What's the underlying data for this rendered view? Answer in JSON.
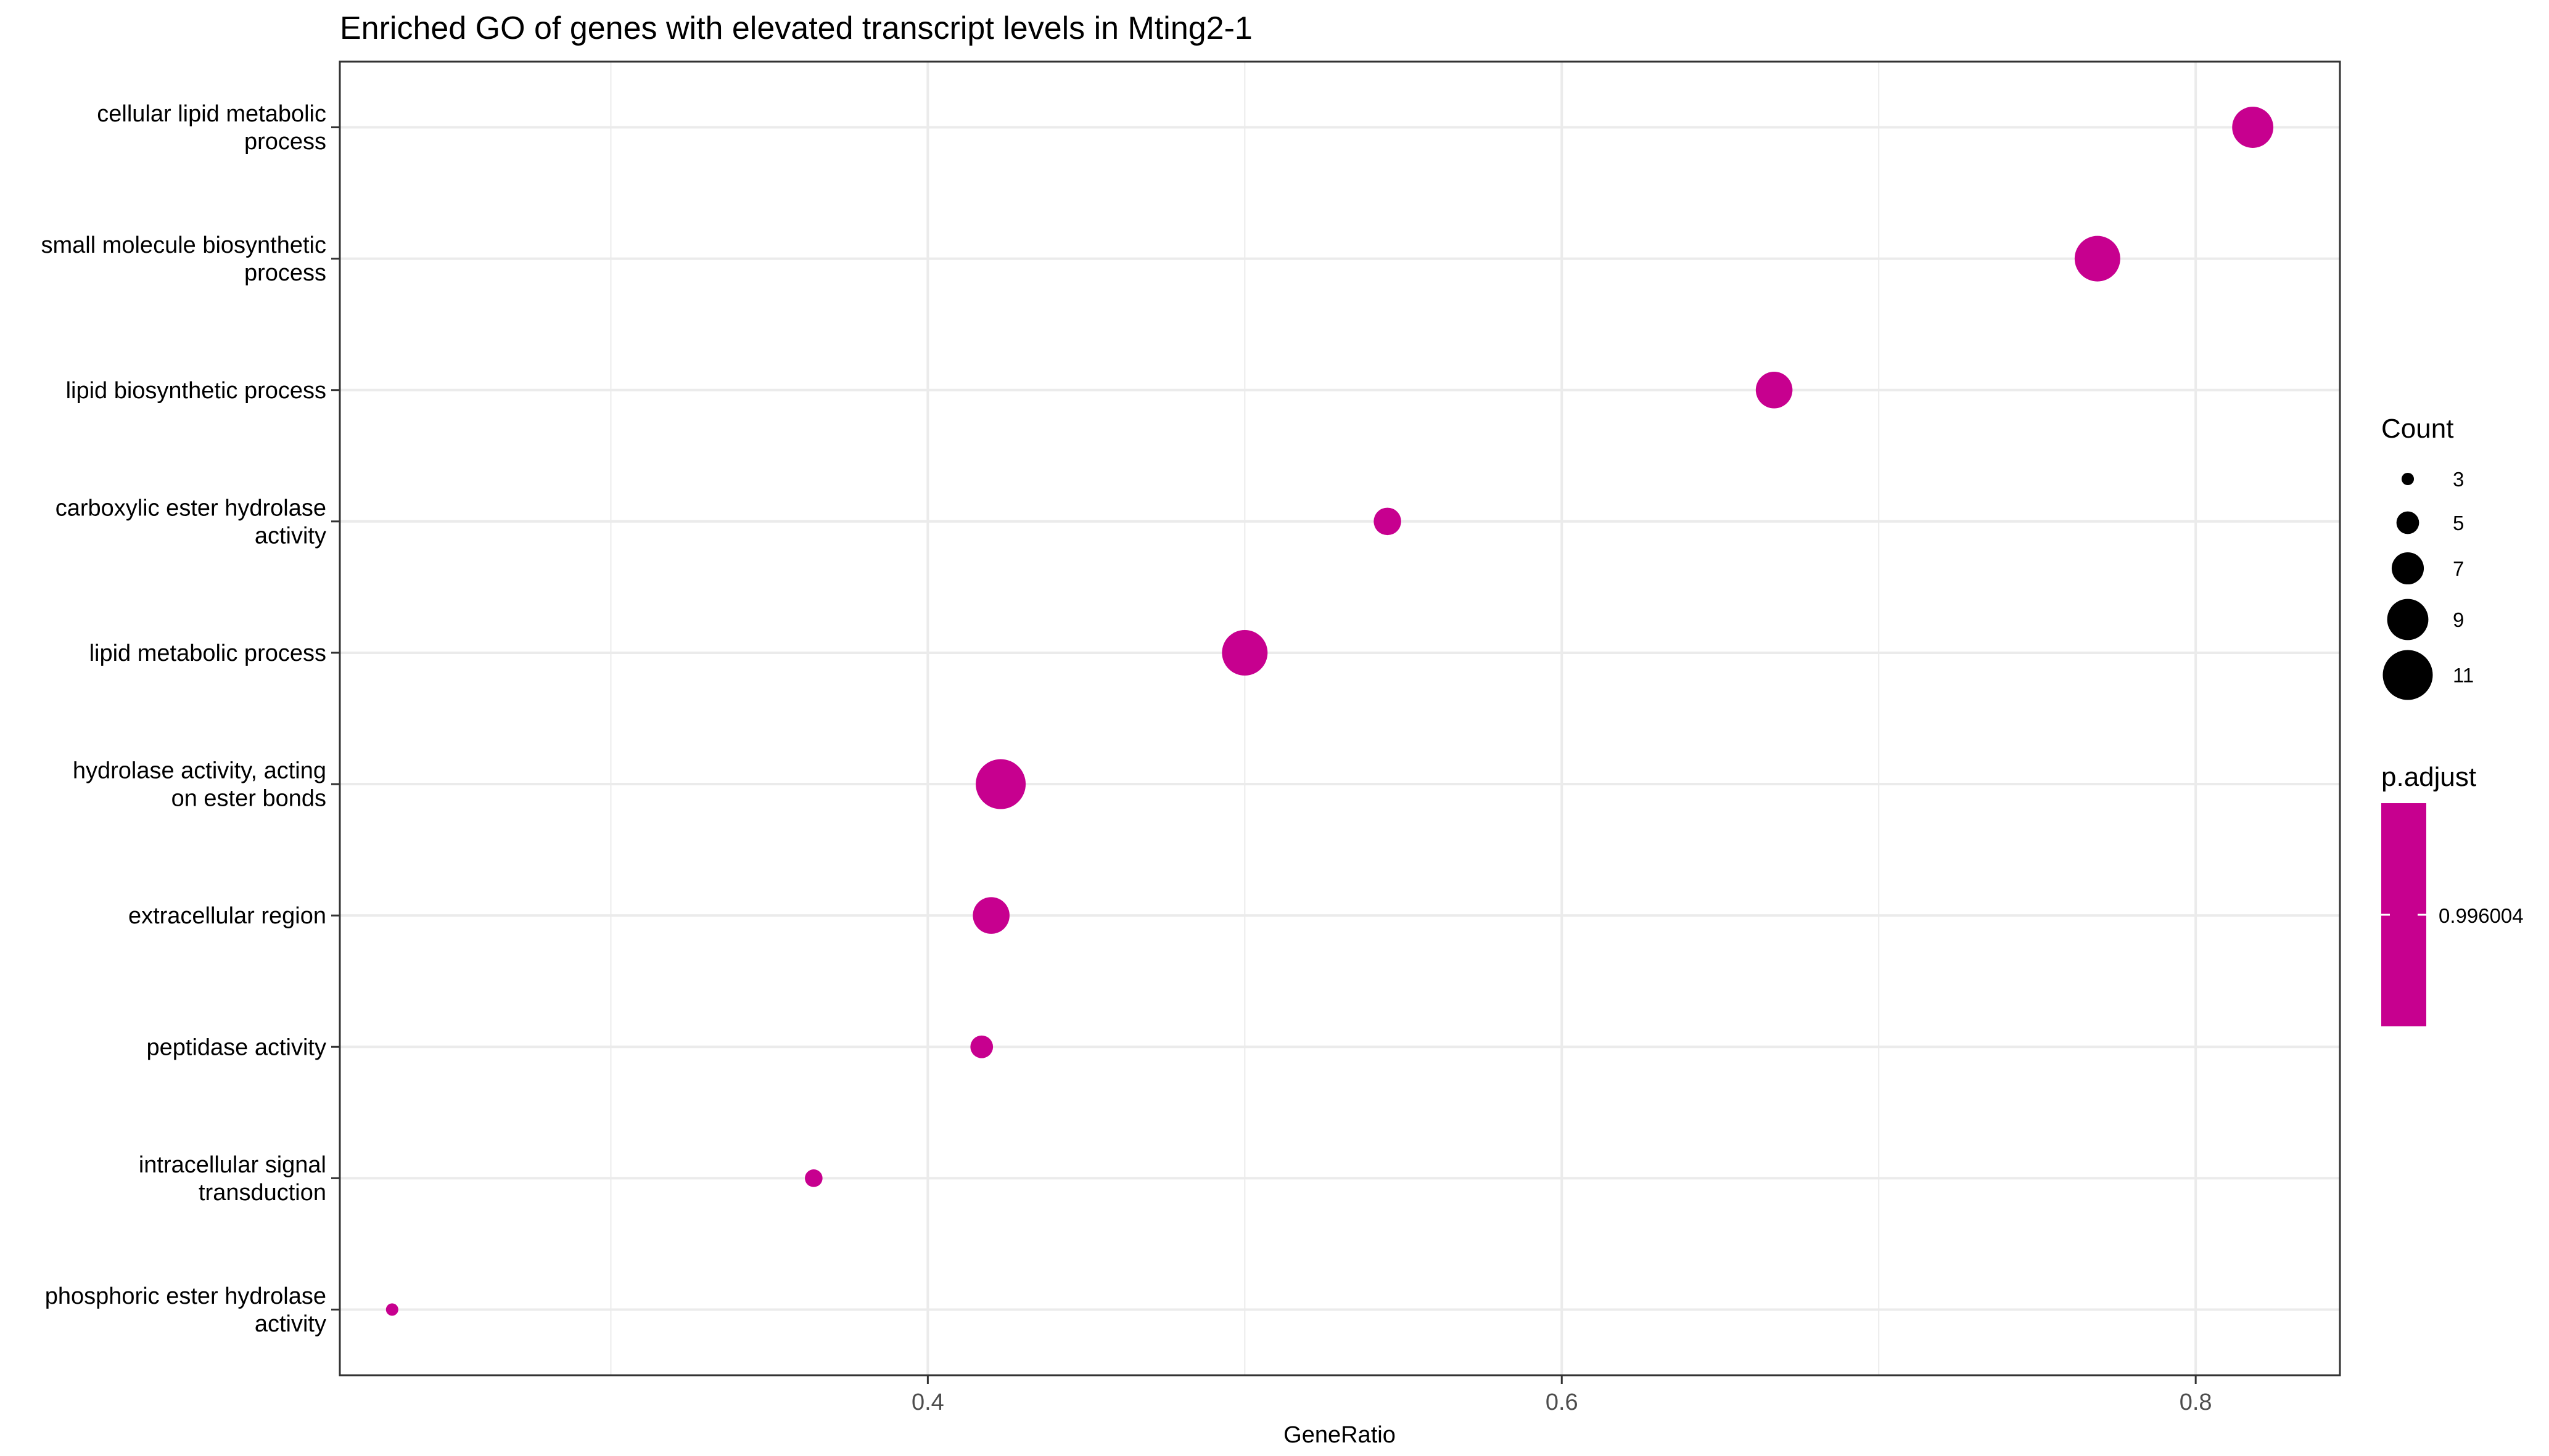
{
  "chart_data": {
    "type": "scatter",
    "title": "Enriched GO of genes with elevated transcript levels in Mting2-1",
    "xlabel": "GeneRatio",
    "ylabel": "",
    "xlim": [
      0.2145,
      0.8455
    ],
    "xticks": [
      0.4,
      0.6,
      0.8
    ],
    "x_tick_labels": [
      "0.4",
      "0.6",
      "0.8"
    ],
    "grid": true,
    "categories": [
      "cellular lipid metabolic process",
      "small molecule biosynthetic process",
      "lipid biosynthetic process",
      "carboxylic ester hydrolase activity",
      "lipid metabolic process",
      "hydrolase activity, acting on ester bonds",
      "extracellular region",
      "peptidase activity",
      "intracellular signal transduction",
      "phosphoric ester hydrolase activity"
    ],
    "category_label_lines": [
      [
        "cellular lipid metabolic",
        "process"
      ],
      [
        "small molecule biosynthetic",
        "process"
      ],
      [
        "lipid biosynthetic process"
      ],
      [
        "carboxylic ester hydrolase",
        "activity"
      ],
      [
        "lipid metabolic process"
      ],
      [
        "hydrolase activity, acting",
        "on ester bonds"
      ],
      [
        "extracellular region"
      ],
      [
        "peptidase activity"
      ],
      [
        "intracellular signal",
        "transduction"
      ],
      [
        "phosphoric ester hydrolase",
        "activity"
      ]
    ],
    "points": [
      {
        "term": "cellular lipid metabolic process",
        "gene_ratio": 0.818,
        "count": 9,
        "p_adjust": 0.996004
      },
      {
        "term": "small molecule biosynthetic process",
        "gene_ratio": 0.769,
        "count": 10,
        "p_adjust": 0.996004
      },
      {
        "term": "lipid biosynthetic process",
        "gene_ratio": 0.667,
        "count": 8,
        "p_adjust": 0.996004
      },
      {
        "term": "carboxylic ester hydrolase activity",
        "gene_ratio": 0.545,
        "count": 6,
        "p_adjust": 0.996004
      },
      {
        "term": "lipid metabolic process",
        "gene_ratio": 0.5,
        "count": 10,
        "p_adjust": 0.996004
      },
      {
        "term": "hydrolase activity, acting on ester bonds",
        "gene_ratio": 0.423,
        "count": 11,
        "p_adjust": 0.996004
      },
      {
        "term": "extracellular region",
        "gene_ratio": 0.42,
        "count": 8,
        "p_adjust": 0.996004
      },
      {
        "term": "peptidase activity",
        "gene_ratio": 0.417,
        "count": 5,
        "p_adjust": 0.996004
      },
      {
        "term": "intracellular signal transduction",
        "gene_ratio": 0.364,
        "count": 4,
        "p_adjust": 0.996004
      },
      {
        "term": "phosphoric ester hydrolase activity",
        "gene_ratio": 0.231,
        "count": 3,
        "p_adjust": 0.996004
      }
    ],
    "size_legend": {
      "title": "Count",
      "values": [
        3,
        5,
        7,
        9,
        11
      ],
      "labels": [
        "3",
        "5",
        "7",
        "9",
        "11"
      ]
    },
    "color_legend": {
      "title": "p.adjust",
      "labels": [
        "0.996004"
      ]
    },
    "colors": {
      "point": "#C7008F",
      "legend_point": "#000000",
      "colorbar": "#C7008F",
      "grid": "#EBEBEB",
      "panel_border": "#333333",
      "text": "#000000",
      "tick_text": "#4D4D4D"
    }
  }
}
